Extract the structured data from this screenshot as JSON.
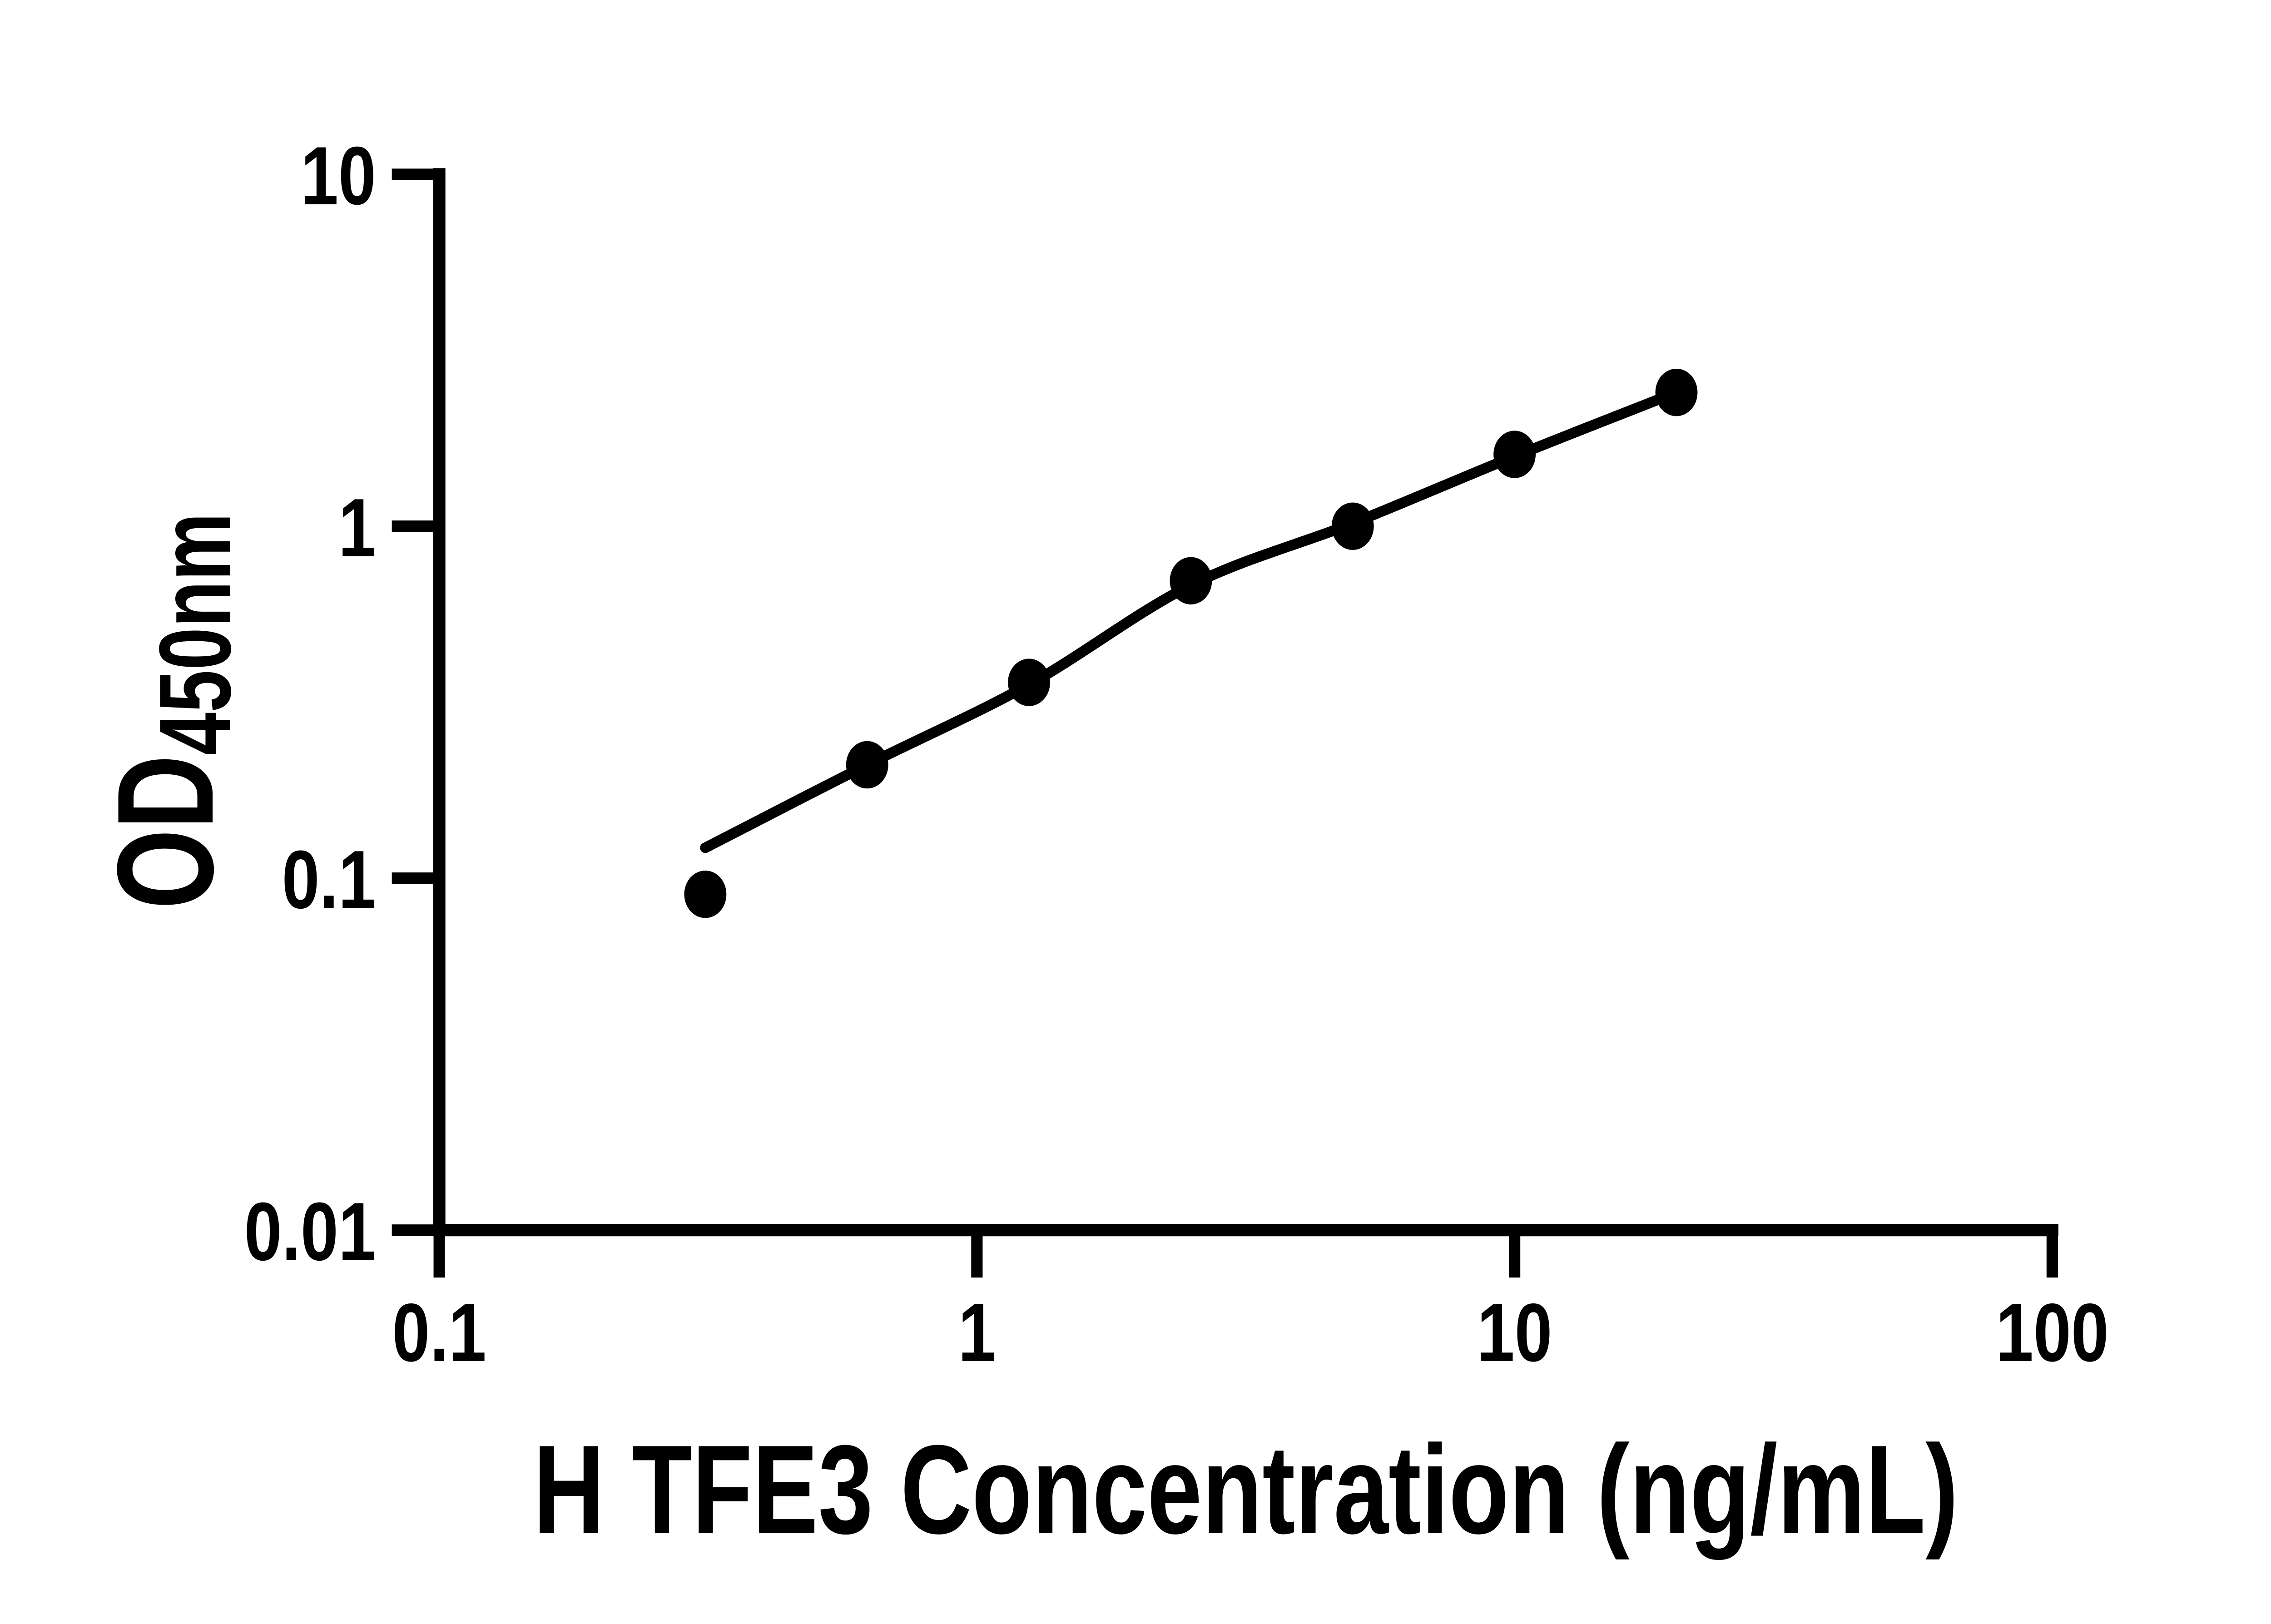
{
  "figure": {
    "background_color": "#ffffff",
    "ink_color": "#000000"
  },
  "chart_data": {
    "type": "scatter",
    "title": "",
    "xlabel": "H TFE3 Concentration (ng/mL)",
    "ylabel_base": "OD",
    "ylabel_subscript": "450nm",
    "x_scale": "log",
    "y_scale": "log",
    "xlim": [
      0.1,
      100
    ],
    "ylim": [
      0.01,
      10
    ],
    "grid": false,
    "legend": false,
    "x_ticks": [
      {
        "value": 0.1,
        "label": "0.1"
      },
      {
        "value": 1,
        "label": "1"
      },
      {
        "value": 10,
        "label": "10"
      },
      {
        "value": 100,
        "label": "100"
      }
    ],
    "y_ticks": [
      {
        "value": 0.01,
        "label": "0.01"
      },
      {
        "value": 0.1,
        "label": "0.1"
      },
      {
        "value": 1,
        "label": "1"
      },
      {
        "value": 10,
        "label": "10"
      }
    ],
    "series": [
      {
        "name": "H TFE3 standard",
        "marker": "filled-circle",
        "color": "#000000",
        "points": [
          [
            0.3125,
            0.09
          ],
          [
            0.625,
            0.21
          ],
          [
            1.25,
            0.36
          ],
          [
            2.5,
            0.7
          ],
          [
            5,
            1.0
          ],
          [
            10,
            1.6
          ],
          [
            20,
            2.4
          ]
        ]
      }
    ],
    "fit_curve": {
      "name": "4PL fit curve",
      "color": "#000000",
      "points": [
        [
          0.3125,
          0.122
        ],
        [
          0.625,
          0.21
        ],
        [
          1.25,
          0.355
        ],
        [
          2.5,
          0.68
        ],
        [
          5,
          1.02
        ],
        [
          10,
          1.58
        ],
        [
          20,
          2.4
        ]
      ]
    }
  }
}
